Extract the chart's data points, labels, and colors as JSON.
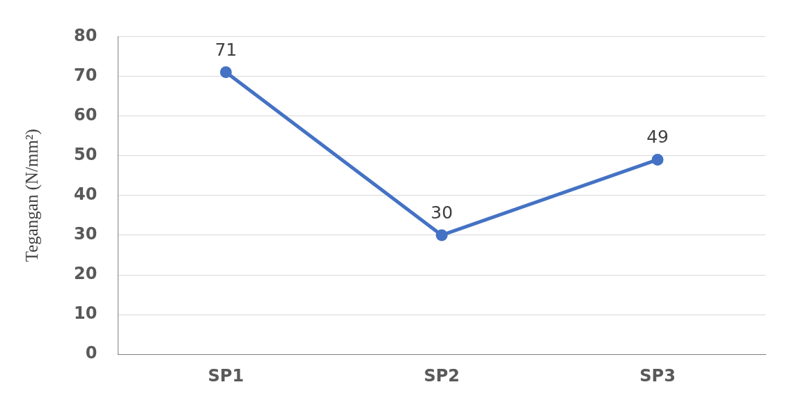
{
  "chart_data": {
    "type": "line",
    "ylabel": "Tegangan (N/mm²)",
    "categories": [
      "SP1",
      "SP2",
      "SP3"
    ],
    "series": [
      {
        "color": "#4472c4",
        "values": [
          71,
          30,
          49
        ]
      }
    ],
    "ylim": [
      0,
      80
    ],
    "yticks": [
      0,
      10,
      20,
      30,
      40,
      50,
      60,
      70,
      80
    ],
    "grid": "y",
    "legend": false,
    "marker": "circle",
    "line_style": "solid",
    "data_labels": true
  }
}
